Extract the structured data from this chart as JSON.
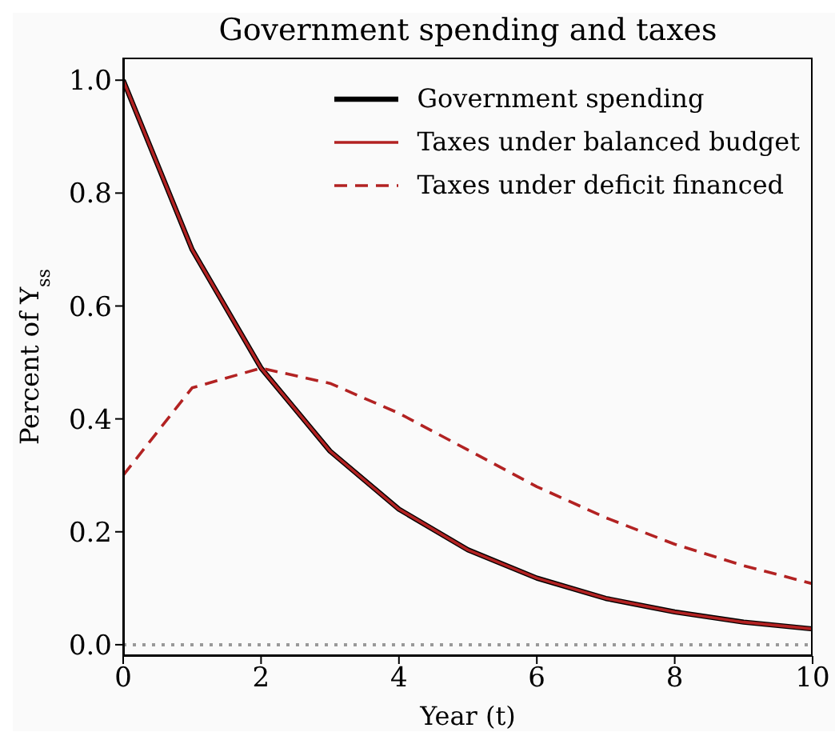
{
  "chart_data": {
    "type": "line",
    "title": "Government spending and taxes",
    "xlabel": "Year (t)",
    "ylabel": "Percent of Y$_{ss}$",
    "x": [
      0,
      1,
      2,
      3,
      4,
      5,
      6,
      7,
      8,
      9,
      10
    ],
    "series": [
      {
        "name": "Government spending",
        "color": "#000000",
        "line_style": "solid",
        "values": [
          1.0,
          0.7,
          0.49,
          0.343,
          0.24,
          0.168,
          0.118,
          0.082,
          0.058,
          0.04,
          0.028
        ]
      },
      {
        "name": "Taxes under balanced budget",
        "color": "#b22222",
        "line_style": "solid",
        "values": [
          1.0,
          0.7,
          0.49,
          0.343,
          0.24,
          0.168,
          0.118,
          0.082,
          0.058,
          0.04,
          0.028
        ]
      },
      {
        "name": "Taxes under deficit financed",
        "color": "#b22222",
        "line_style": "dashed",
        "values": [
          0.3,
          0.455,
          0.49,
          0.463,
          0.41,
          0.345,
          0.28,
          0.225,
          0.178,
          0.14,
          0.108
        ]
      }
    ],
    "xlim": [
      0,
      10
    ],
    "xticks": [
      0,
      2,
      4,
      6,
      8,
      10
    ],
    "ylim": [
      -0.02,
      1.04
    ],
    "yticks": [
      {
        "value": 0,
        "label": "0.0"
      },
      0.2,
      0.4,
      0.6,
      0.8,
      {
        "value": 1,
        "label": "1.0"
      }
    ],
    "ref_lines": [
      {
        "axis": "y",
        "value": 0,
        "color": "#999999",
        "line_style": "dotted"
      }
    ],
    "legend": "top right",
    "grid": false,
    "marker": "none"
  }
}
